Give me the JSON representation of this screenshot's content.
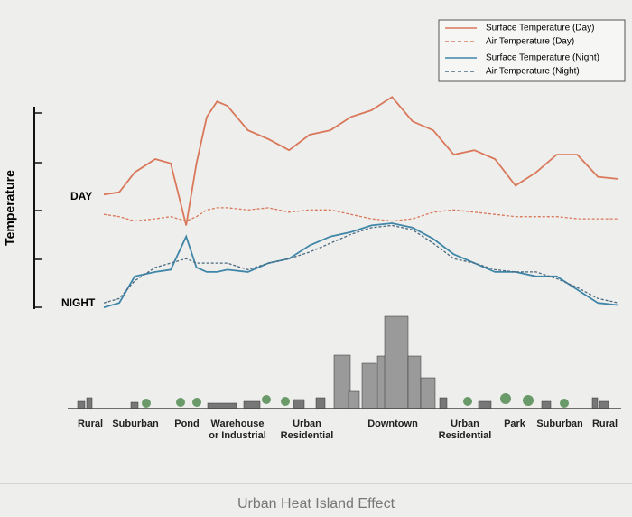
{
  "chart_data": {
    "type": "line",
    "title": "Urban Heat Island Effect",
    "y_label": "Temperature",
    "annotations": [
      "DAY",
      "NIGHT"
    ],
    "categories": [
      "Rural",
      "Suburban",
      "Pond",
      "Warehouse or Industrial",
      "Urban Residential",
      "Downtown",
      "Urban Residential",
      "Park",
      "Suburban",
      "Rural"
    ],
    "x": [
      0,
      3,
      6,
      10,
      13,
      16,
      18,
      20,
      22,
      24,
      28,
      32,
      36,
      40,
      44,
      48,
      52,
      56,
      60,
      64,
      68,
      72,
      76,
      80,
      84,
      88,
      92,
      96,
      100
    ],
    "xlim": [
      0,
      100
    ],
    "ylim": [
      0,
      100
    ],
    "series": [
      {
        "name": "Surface Temperature (Day)",
        "color": "#d9785a",
        "dashed": false,
        "values": [
          53,
          54,
          63,
          69,
          67,
          39,
          67,
          88,
          95,
          93,
          82,
          78,
          73,
          80,
          82,
          88,
          91,
          97,
          86,
          82,
          71,
          73,
          69,
          57,
          63,
          71,
          71,
          61,
          60
        ]
      },
      {
        "name": "Air Temperature (Day)",
        "color": "#d9785a",
        "dashed": true,
        "values": [
          44,
          43,
          41,
          42,
          43,
          41,
          43,
          46,
          47,
          47,
          46,
          47,
          45,
          46,
          46,
          44,
          42,
          41,
          42,
          45,
          46,
          45,
          44,
          43,
          43,
          43,
          42,
          42,
          42
        ]
      },
      {
        "name": "Surface Temperature (Night)",
        "color": "#3f86a8",
        "dashed": false,
        "values": [
          2,
          4,
          16,
          18,
          19,
          34,
          20,
          18,
          18,
          19,
          18,
          22,
          24,
          30,
          34,
          36,
          39,
          40,
          38,
          33,
          26,
          22,
          18,
          18,
          16,
          16,
          10,
          4,
          3
        ]
      },
      {
        "name": "Air Temperature (Night)",
        "color": "#4a6a80",
        "dashed": true,
        "values": [
          4,
          6,
          14,
          20,
          22,
          24,
          22,
          22,
          22,
          22,
          19,
          22,
          24,
          27,
          31,
          35,
          38,
          39,
          37,
          31,
          24,
          22,
          19,
          18,
          18,
          15,
          11,
          6,
          4
        ]
      }
    ]
  }
}
